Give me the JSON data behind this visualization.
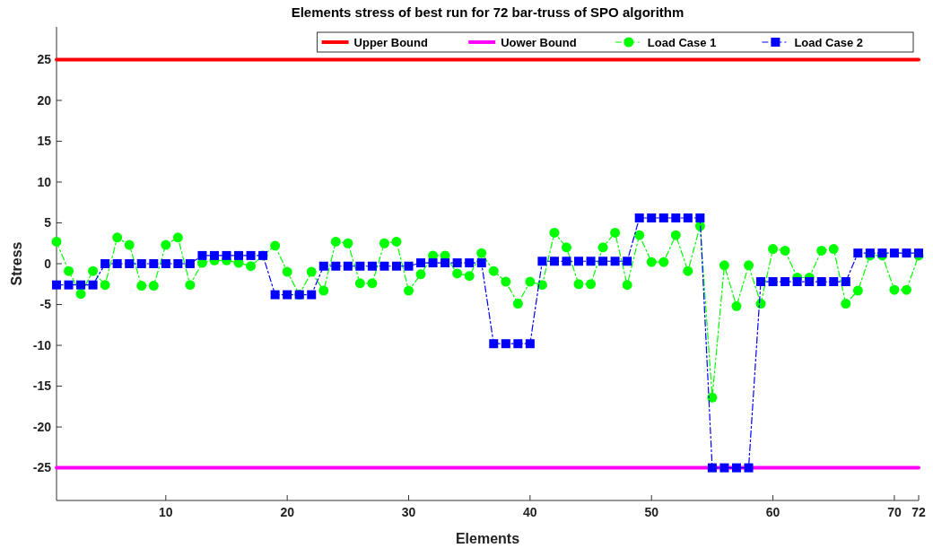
{
  "chart_data": {
    "type": "line",
    "title": "Elements stress of best run for 72 bar-truss of SPO algorithm",
    "xlabel": "Elements",
    "ylabel": "Stress",
    "xlim": [
      1,
      72
    ],
    "xticks": [
      10,
      20,
      30,
      40,
      50,
      60,
      70,
      72
    ],
    "ylim": [
      -29,
      29
    ],
    "yticks": [
      -25,
      -20,
      -15,
      -10,
      -5,
      0,
      5,
      10,
      15,
      20,
      25
    ],
    "grid": false,
    "legend": "top right",
    "series": [
      {
        "name": "Upper Bound",
        "color": "#ff0000",
        "x": [
          1,
          72
        ],
        "values": [
          25,
          25
        ],
        "marker": "none",
        "line_style": "solid"
      },
      {
        "name": "Uower Bound",
        "color": "#ff00ff",
        "x": [
          1,
          72
        ],
        "values": [
          -25,
          -25
        ],
        "marker": "none",
        "line_style": "solid"
      },
      {
        "name": "Load Case 1",
        "color": "#00ff00",
        "marker": "circle",
        "line_style": "dashed",
        "x": [
          1,
          2,
          3,
          4,
          5,
          6,
          7,
          8,
          9,
          10,
          11,
          12,
          13,
          14,
          15,
          16,
          17,
          18,
          19,
          20,
          21,
          22,
          23,
          24,
          25,
          26,
          27,
          28,
          29,
          30,
          31,
          32,
          33,
          34,
          35,
          36,
          37,
          38,
          39,
          40,
          41,
          42,
          43,
          44,
          45,
          46,
          47,
          48,
          49,
          50,
          51,
          52,
          53,
          54,
          55,
          56,
          57,
          58,
          59,
          60,
          61,
          62,
          63,
          64,
          65,
          66,
          67,
          68,
          69,
          70,
          71,
          72
        ],
        "values": [
          2.7,
          -0.9,
          -3.7,
          -0.9,
          -2.6,
          3.2,
          2.3,
          -2.7,
          -2.7,
          2.3,
          3.2,
          -2.6,
          0.1,
          0.4,
          0.4,
          0.1,
          -0.3,
          1.0,
          2.2,
          -1.0,
          -3.8,
          -1.0,
          -3.3,
          2.7,
          2.5,
          -2.4,
          -2.4,
          2.5,
          2.7,
          -3.3,
          -1.3,
          1.0,
          1.0,
          -1.2,
          -1.5,
          1.3,
          -0.9,
          -2.2,
          -4.9,
          -2.2,
          -2.6,
          3.8,
          2.0,
          -2.5,
          -2.5,
          2.0,
          3.8,
          -2.6,
          3.5,
          0.2,
          0.2,
          3.5,
          -0.9,
          4.6,
          -16.4,
          -0.2,
          -5.2,
          -0.2,
          -4.9,
          1.8,
          1.6,
          -1.7,
          -1.7,
          1.6,
          1.8,
          -4.9,
          -3.3,
          1.0,
          1.0,
          -3.2,
          -3.2,
          1.0
        ]
      },
      {
        "name": "Load Case 2",
        "color": "#0000ff",
        "marker": "square",
        "line_style": "dashed",
        "x": [
          1,
          2,
          3,
          4,
          5,
          6,
          7,
          8,
          9,
          10,
          11,
          12,
          13,
          14,
          15,
          16,
          17,
          18,
          19,
          20,
          21,
          22,
          23,
          24,
          25,
          26,
          27,
          28,
          29,
          30,
          31,
          32,
          33,
          34,
          35,
          36,
          37,
          38,
          39,
          40,
          41,
          42,
          43,
          44,
          45,
          46,
          47,
          48,
          49,
          50,
          51,
          52,
          53,
          54,
          55,
          56,
          57,
          58,
          59,
          60,
          61,
          62,
          63,
          64,
          65,
          66,
          67,
          68,
          69,
          70,
          71,
          72
        ],
        "values": [
          -2.6,
          -2.6,
          -2.6,
          -2.6,
          0,
          0,
          0,
          0,
          0,
          0,
          0,
          0,
          1.0,
          1.0,
          1.0,
          1.0,
          1.0,
          1.0,
          -3.8,
          -3.8,
          -3.8,
          -3.8,
          -0.3,
          -0.3,
          -0.3,
          -0.3,
          -0.3,
          -0.3,
          -0.3,
          -0.3,
          0.1,
          0.1,
          0.1,
          0.1,
          0.1,
          0.1,
          -9.8,
          -9.8,
          -9.8,
          -9.8,
          0.3,
          0.3,
          0.3,
          0.3,
          0.3,
          0.3,
          0.3,
          0.3,
          5.6,
          5.6,
          5.6,
          5.6,
          5.6,
          5.6,
          -25,
          -25,
          -25,
          -25,
          -2.2,
          -2.2,
          -2.2,
          -2.2,
          -2.2,
          -2.2,
          -2.2,
          -2.2,
          1.3,
          1.3,
          1.3,
          1.3,
          1.3,
          1.3
        ]
      }
    ]
  }
}
